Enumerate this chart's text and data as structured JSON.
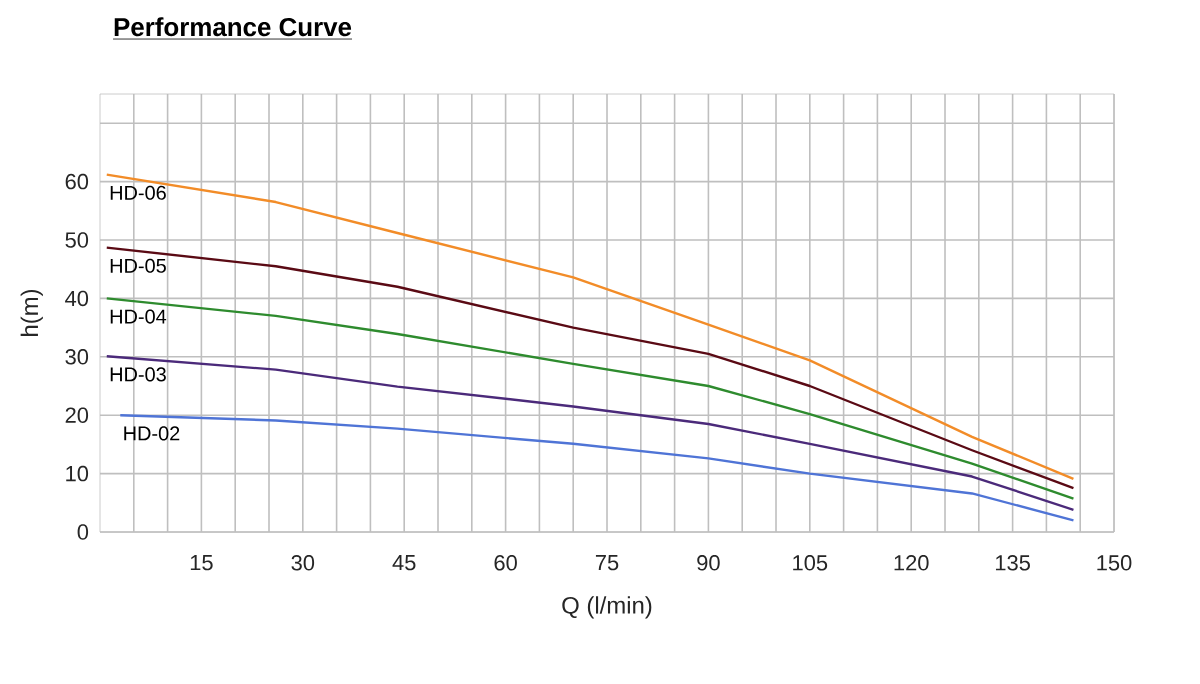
{
  "chart_data": {
    "type": "line",
    "title": "Performance Curve",
    "xlabel": "Q (l/min)",
    "ylabel": "h(m)",
    "xlim": [
      0,
      150
    ],
    "ylim": [
      0,
      75
    ],
    "xticks": [
      {
        "value": 5,
        "label": null
      },
      {
        "value": 10,
        "label": null
      },
      15,
      {
        "value": 20,
        "label": null
      },
      {
        "value": 25,
        "label": null
      },
      30,
      {
        "value": 35,
        "label": null
      },
      {
        "value": 40,
        "label": null
      },
      45,
      {
        "value": 50,
        "label": null
      },
      {
        "value": 55,
        "label": null
      },
      60,
      {
        "value": 65,
        "label": null
      },
      {
        "value": 70,
        "label": null
      },
      75,
      {
        "value": 80,
        "label": null
      },
      {
        "value": 85,
        "label": null
      },
      90,
      {
        "value": 95,
        "label": null
      },
      {
        "value": 100,
        "label": null
      },
      105,
      {
        "value": 110,
        "label": null
      },
      {
        "value": 115,
        "label": null
      },
      120,
      {
        "value": 125,
        "label": null
      },
      {
        "value": 130,
        "label": null
      },
      135,
      {
        "value": 140,
        "label": null
      },
      {
        "value": 145,
        "label": null
      },
      150
    ],
    "yticks": [
      0,
      10,
      20,
      30,
      40,
      50,
      60,
      {
        "value": 70,
        "label": null
      }
    ],
    "grid": true,
    "legend": false,
    "marker": "none",
    "line_style": "solid",
    "series": [
      {
        "name": "HD-06",
        "color": "#f28c28",
        "x": [
          1,
          26,
          44,
          70,
          90,
          105,
          129,
          144
        ],
        "values": [
          61.2,
          56.5,
          51.2,
          43.6,
          35.5,
          29.4,
          16.3,
          9.1
        ]
      },
      {
        "name": "HD-05",
        "color": "#5a0a14",
        "x": [
          1,
          26,
          44,
          70,
          90,
          105,
          129,
          144
        ],
        "values": [
          48.7,
          45.5,
          42,
          35,
          30.5,
          25,
          14,
          7.5
        ]
      },
      {
        "name": "HD-04",
        "color": "#2e8b2e",
        "x": [
          1,
          26,
          44,
          70,
          90,
          105,
          129,
          144
        ],
        "values": [
          40,
          37,
          33.9,
          28.8,
          25,
          20.2,
          11.7,
          5.7
        ]
      },
      {
        "name": "HD-03",
        "color": "#4b2a7a",
        "x": [
          1,
          26,
          44,
          70,
          90,
          105,
          129,
          144
        ],
        "values": [
          30.1,
          27.8,
          24.9,
          21.5,
          18.5,
          15.1,
          9.5,
          3.8
        ]
      },
      {
        "name": "HD-02",
        "color": "#4f74d6",
        "x": [
          3,
          26,
          44,
          70,
          90,
          105,
          129,
          144
        ],
        "values": [
          20,
          19.1,
          17.7,
          15.1,
          12.6,
          10,
          6.6,
          2
        ]
      }
    ]
  }
}
